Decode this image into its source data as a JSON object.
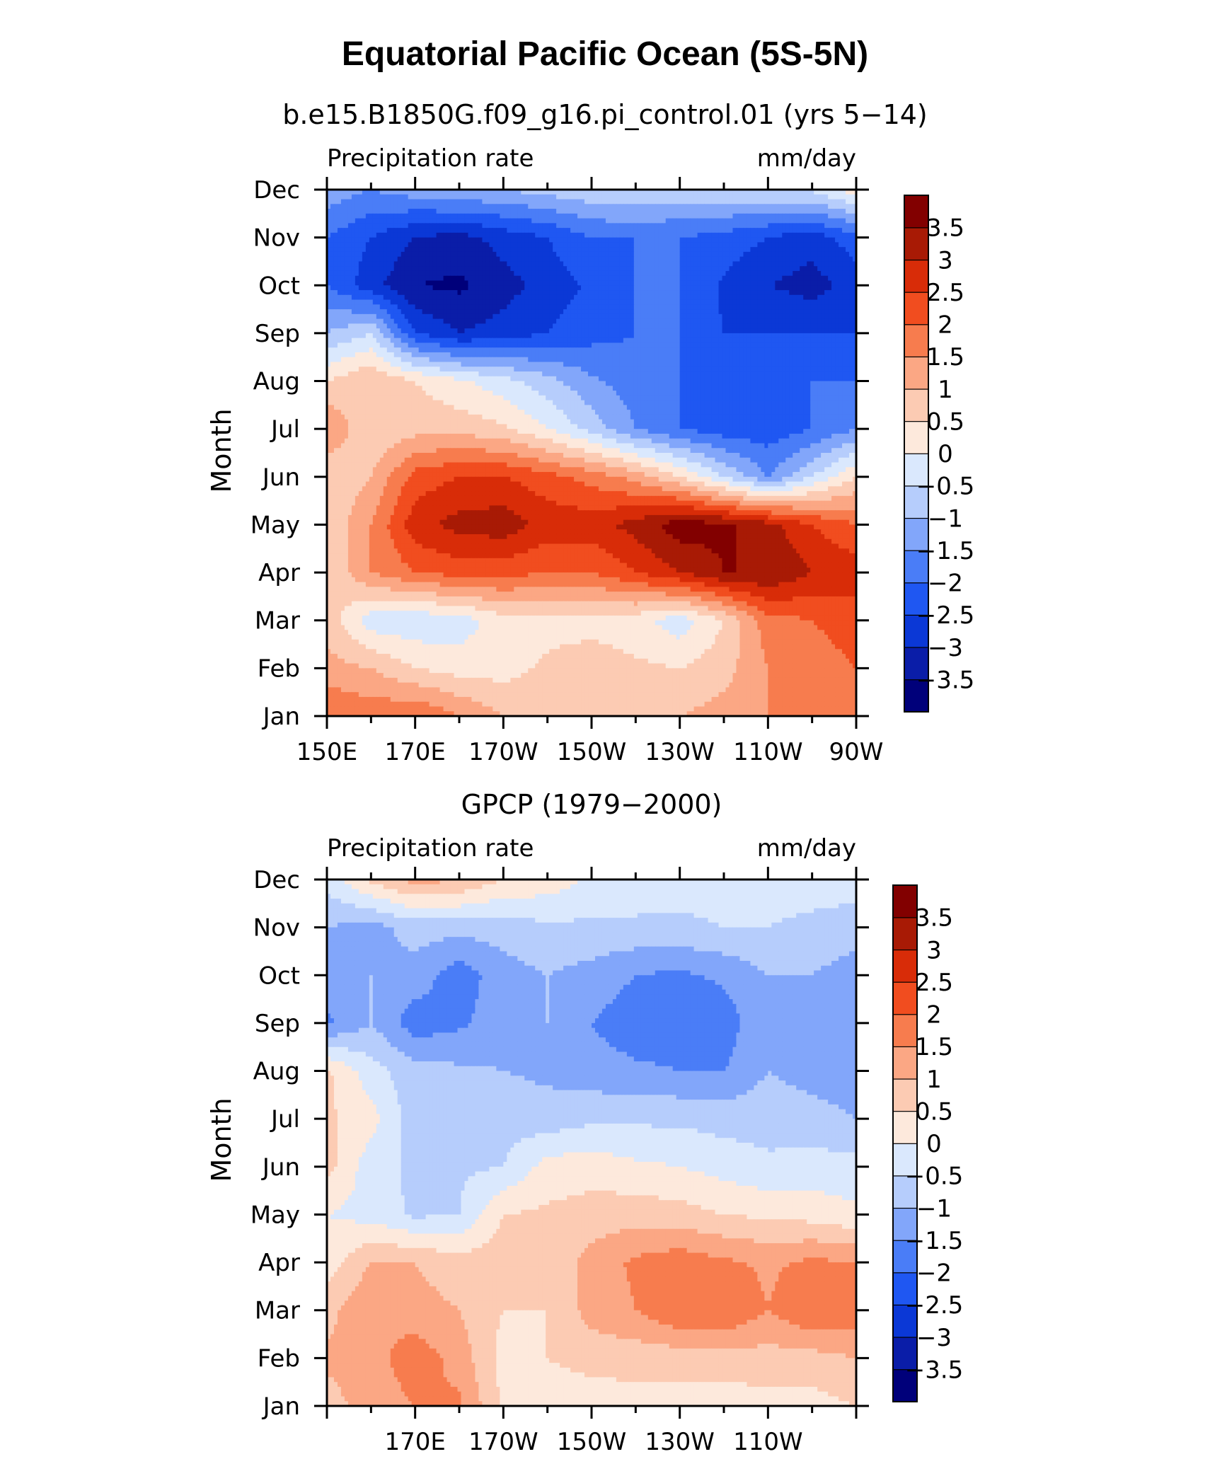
{
  "title": "Equatorial Pacific Ocean (5S-5N)",
  "colors": {
    "levels": [
      -3.5,
      -3,
      -2.5,
      -2,
      -1.5,
      -1,
      -0.5,
      0,
      0.5,
      1,
      1.5,
      2,
      2.5,
      3,
      3.5
    ],
    "fills": [
      "#00007a",
      "#0a1da8",
      "#0b38d6",
      "#1f57f2",
      "#4a7df7",
      "#82a6fa",
      "#b6cdfc",
      "#dae8fd",
      "#fde9dc",
      "#fccbb3",
      "#fba784",
      "#f77c4e",
      "#f14d1f",
      "#d82c08",
      "#a81a05",
      "#820000"
    ],
    "labels": [
      "-3.5",
      "-3",
      "-2.5",
      "-2",
      "-1.5",
      "-1",
      "-0.5",
      "0",
      "0.5",
      "1",
      "1.5",
      "2",
      "2.5",
      "3",
      "3.5"
    ]
  },
  "chart_data": [
    {
      "type": "heatmap",
      "subtitle": "b.e15.B1850G.f09_g16.pi_control.01 (yrs 5−14)",
      "left_label": "Precipitation rate",
      "right_label": "mm/day",
      "ylabel": "Month",
      "xlabel": "",
      "x_ticks": [
        "150E",
        "170E",
        "170W",
        "150W",
        "130W",
        "110W",
        "90W"
      ],
      "x_range": [
        "150E",
        "90W"
      ],
      "y_ticks": [
        "Jan",
        "Feb",
        "Mar",
        "Apr",
        "May",
        "Jun",
        "Jul",
        "Aug",
        "Sep",
        "Oct",
        "Nov",
        "Dec"
      ],
      "x": [
        "150E",
        "160E",
        "170E",
        "180",
        "170W",
        "160W",
        "150W",
        "140W",
        "130W",
        "120W",
        "110W",
        "100W",
        "90W"
      ],
      "y": [
        "Jan",
        "Feb",
        "Mar",
        "Apr",
        "May",
        "Jun",
        "Jul",
        "Aug",
        "Sep",
        "Oct",
        "Nov",
        "Dec"
      ],
      "z": [
        [
          2.0,
          1.8,
          2.0,
          1.5,
          1.0,
          0.8,
          0.8,
          0.8,
          1.0,
          1.2,
          1.5,
          1.6,
          1.8
        ],
        [
          1.2,
          1.0,
          0.5,
          0.3,
          0.3,
          0.6,
          0.8,
          0.6,
          0.5,
          0.8,
          1.5,
          1.8,
          2.0
        ],
        [
          0.8,
          -0.3,
          -0.4,
          -0.3,
          0.3,
          0.3,
          0.3,
          0.2,
          -0.3,
          0.5,
          1.8,
          2.0,
          2.2
        ],
        [
          0.5,
          1.5,
          2.0,
          2.2,
          2.2,
          2.0,
          2.0,
          2.5,
          3.0,
          3.5,
          3.5,
          3.0,
          2.8
        ],
        [
          0.6,
          1.5,
          2.8,
          3.2,
          3.3,
          2.8,
          2.8,
          3.2,
          3.8,
          3.6,
          3.2,
          2.5,
          2.0
        ],
        [
          0.5,
          1.0,
          2.2,
          2.5,
          2.5,
          2.2,
          1.8,
          1.3,
          0.5,
          -0.5,
          -1.5,
          -0.5,
          0.5
        ],
        [
          1.5,
          0.5,
          0.8,
          0.8,
          0.6,
          0.0,
          -0.7,
          -1.5,
          -2.0,
          -2.3,
          -2.3,
          -2.0,
          -1.5
        ],
        [
          0.5,
          1.0,
          0.5,
          0.1,
          -0.3,
          -0.8,
          -1.4,
          -1.8,
          -2.0,
          -2.2,
          -2.2,
          -2.0,
          -2.0
        ],
        [
          -1.0,
          -0.5,
          -2.5,
          -3.0,
          -2.8,
          -2.5,
          -2.2,
          -2.0,
          -2.0,
          -2.5,
          -2.5,
          -2.5,
          -2.5
        ],
        [
          -2.0,
          -2.8,
          -3.5,
          -3.6,
          -3.2,
          -2.8,
          -2.4,
          -2.0,
          -2.0,
          -2.6,
          -3.0,
          -3.2,
          -2.8
        ],
        [
          -2.0,
          -2.5,
          -3.0,
          -3.2,
          -2.8,
          -2.5,
          -2.0,
          -2.0,
          -2.0,
          -2.2,
          -2.5,
          -2.8,
          -2.2
        ],
        [
          -1.2,
          -1.5,
          -1.2,
          -1.0,
          -1.0,
          -0.8,
          -0.6,
          -0.5,
          -0.6,
          -0.6,
          -0.5,
          -0.4,
          0.3
        ]
      ]
    },
    {
      "type": "heatmap",
      "subtitle": "GPCP (1979−2000)",
      "left_label": "Precipitation rate",
      "right_label": "mm/day",
      "ylabel": "Month",
      "xlabel": "",
      "x_ticks": [
        "170E",
        "170W",
        "150W",
        "130W",
        "110W"
      ],
      "x_range": [
        "150E",
        "90W"
      ],
      "y_ticks": [
        "Jan",
        "Feb",
        "Mar",
        "Apr",
        "May",
        "Jun",
        "Jul",
        "Aug",
        "Sep",
        "Oct",
        "Nov",
        "Dec"
      ],
      "x": [
        "150E",
        "160E",
        "170E",
        "180",
        "170W",
        "160W",
        "150W",
        "140W",
        "130W",
        "120W",
        "110W",
        "100W",
        "90W"
      ],
      "y": [
        "Jan",
        "Feb",
        "Mar",
        "Apr",
        "May",
        "Jun",
        "Jul",
        "Aug",
        "Sep",
        "Oct",
        "Nov",
        "Dec"
      ],
      "z": [
        [
          0.8,
          1.2,
          1.5,
          1.6,
          0.4,
          0.2,
          0.2,
          0.3,
          0.3,
          0.2,
          0.3,
          0.3,
          0.5
        ],
        [
          1.1,
          1.3,
          1.8,
          1.3,
          0.3,
          0.5,
          0.7,
          0.7,
          0.7,
          0.8,
          0.8,
          0.8,
          1.0
        ],
        [
          0.8,
          1.5,
          1.2,
          1.0,
          0.5,
          0.5,
          1.2,
          1.5,
          2.0,
          2.0,
          1.5,
          2.0,
          1.8
        ],
        [
          0.2,
          1.0,
          1.0,
          0.7,
          0.8,
          0.6,
          1.2,
          1.6,
          1.8,
          1.6,
          1.4,
          1.6,
          1.5
        ],
        [
          0.0,
          -0.2,
          -0.6,
          -0.5,
          0.5,
          0.6,
          0.7,
          0.8,
          0.7,
          0.5,
          0.4,
          0.3,
          0.1
        ],
        [
          0.7,
          -0.3,
          -0.6,
          -0.6,
          -0.5,
          0.2,
          0.3,
          0.1,
          0.0,
          -0.2,
          -0.4,
          -0.3,
          -0.3
        ],
        [
          0.6,
          0.2,
          -0.8,
          -0.8,
          -0.7,
          -0.8,
          -0.6,
          -0.6,
          -0.6,
          -0.7,
          -0.7,
          -0.8,
          -1.0
        ],
        [
          0.6,
          -0.3,
          -0.8,
          -0.9,
          -1.0,
          -1.1,
          -1.3,
          -1.4,
          -1.5,
          -1.5,
          -1.0,
          -1.2,
          -1.3
        ],
        [
          -1.6,
          -1.0,
          -1.8,
          -1.6,
          -1.2,
          -1.0,
          -1.5,
          -1.8,
          -1.8,
          -1.8,
          -1.0,
          -1.2,
          -1.5
        ],
        [
          -1.2,
          -1.0,
          -1.2,
          -1.8,
          -1.2,
          -1.0,
          -1.2,
          -1.5,
          -1.6,
          -1.4,
          -1.0,
          -1.0,
          -1.3
        ],
        [
          -1.0,
          -1.2,
          -0.8,
          -0.8,
          -0.8,
          -0.6,
          -0.6,
          -0.6,
          -0.6,
          -0.5,
          -0.5,
          -0.6,
          -0.7
        ],
        [
          -0.3,
          0.6,
          1.2,
          1.0,
          0.5,
          0.3,
          -0.1,
          -0.2,
          -0.3,
          -0.3,
          -0.3,
          -0.3,
          -0.3
        ]
      ]
    }
  ]
}
